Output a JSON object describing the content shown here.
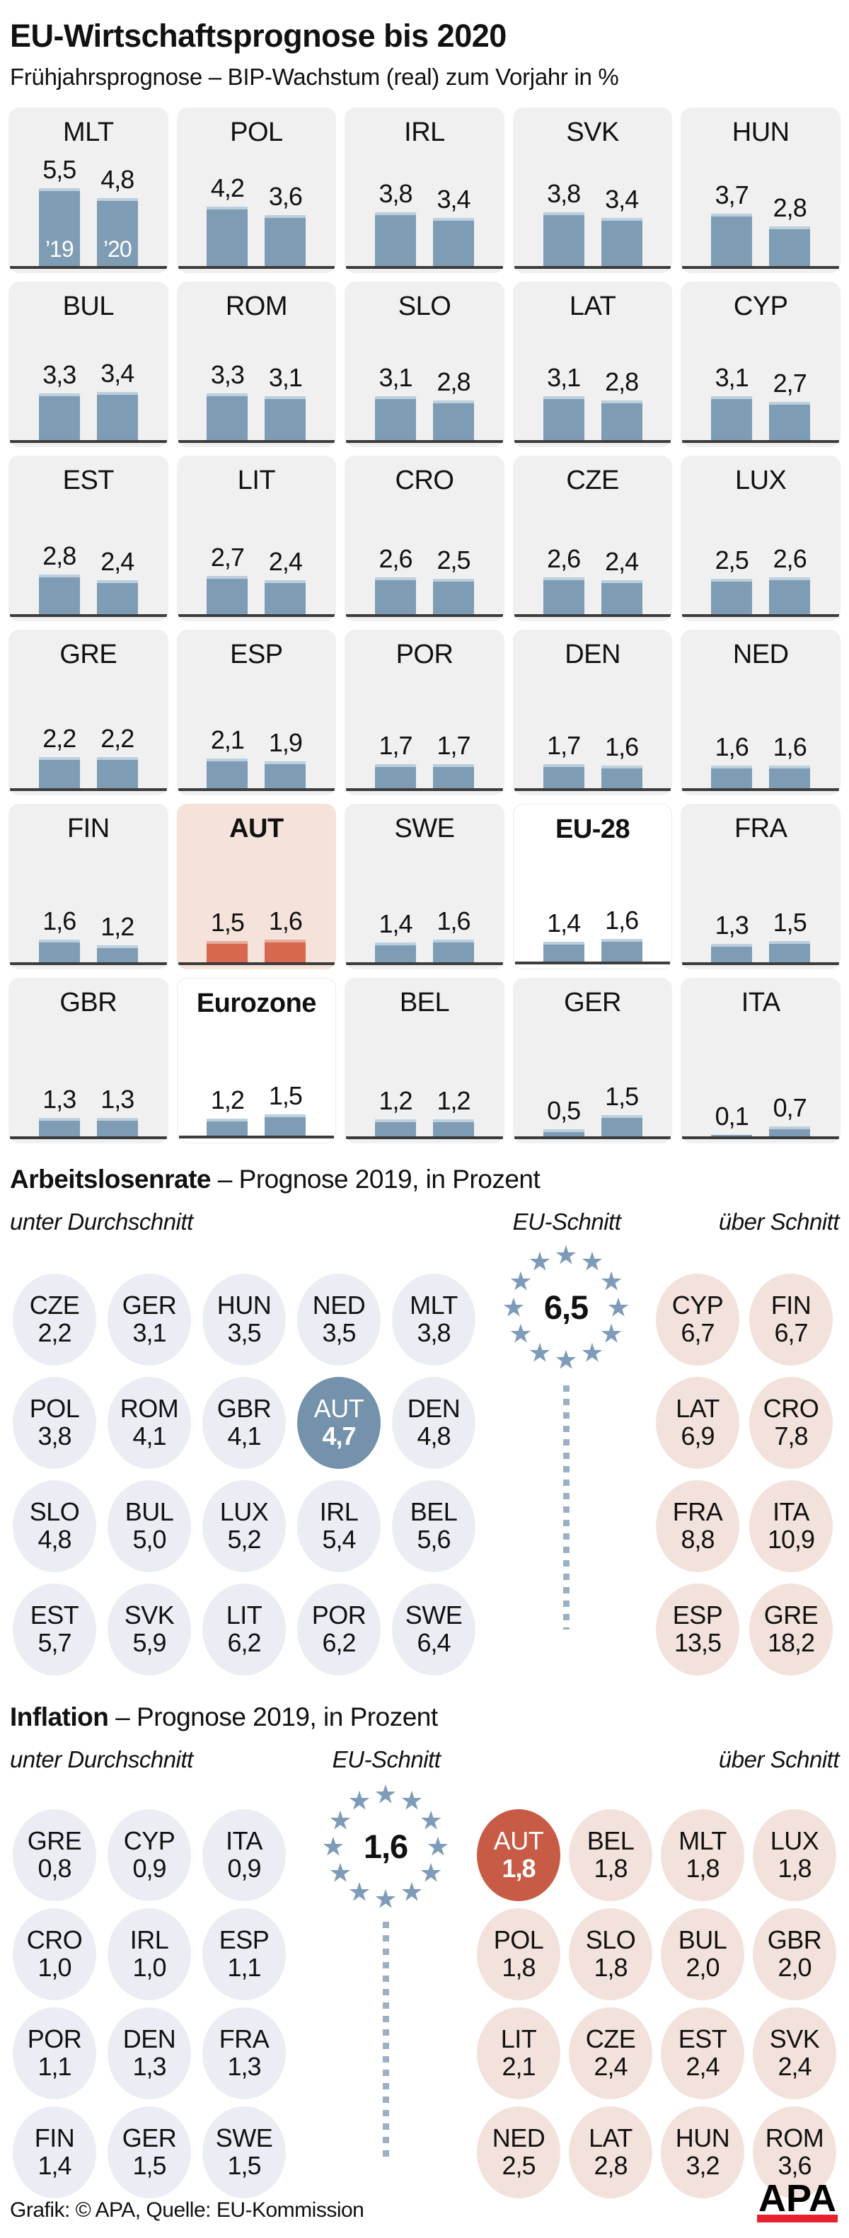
{
  "header": {
    "title": "EU-Wirtschaftsprognose bis 2020",
    "subtitle": "Frühjahrsprognose – BIP-Wachstum (real) zum Vorjahr in %"
  },
  "gdp": {
    "year_labels": [
      "’19",
      "’20"
    ],
    "tiles": [
      {
        "code": "MLT",
        "v2019": 5.5,
        "v2020": 4.8,
        "bg": "gray",
        "bold": false,
        "show_years": true
      },
      {
        "code": "POL",
        "v2019": 4.2,
        "v2020": 3.6,
        "bg": "gray",
        "bold": false,
        "show_years": false
      },
      {
        "code": "IRL",
        "v2019": 3.8,
        "v2020": 3.4,
        "bg": "gray",
        "bold": false,
        "show_years": false
      },
      {
        "code": "SVK",
        "v2019": 3.8,
        "v2020": 3.4,
        "bg": "gray",
        "bold": false,
        "show_years": false
      },
      {
        "code": "HUN",
        "v2019": 3.7,
        "v2020": 2.8,
        "bg": "gray",
        "bold": false,
        "show_years": false
      },
      {
        "code": "BUL",
        "v2019": 3.3,
        "v2020": 3.4,
        "bg": "gray",
        "bold": false,
        "show_years": false
      },
      {
        "code": "ROM",
        "v2019": 3.3,
        "v2020": 3.1,
        "bg": "gray",
        "bold": false,
        "show_years": false
      },
      {
        "code": "SLO",
        "v2019": 3.1,
        "v2020": 2.8,
        "bg": "gray",
        "bold": false,
        "show_years": false
      },
      {
        "code": "LAT",
        "v2019": 3.1,
        "v2020": 2.8,
        "bg": "gray",
        "bold": false,
        "show_years": false
      },
      {
        "code": "CYP",
        "v2019": 3.1,
        "v2020": 2.7,
        "bg": "gray",
        "bold": false,
        "show_years": false
      },
      {
        "code": "EST",
        "v2019": 2.8,
        "v2020": 2.4,
        "bg": "gray",
        "bold": false,
        "show_years": false
      },
      {
        "code": "LIT",
        "v2019": 2.7,
        "v2020": 2.4,
        "bg": "gray",
        "bold": false,
        "show_years": false
      },
      {
        "code": "CRO",
        "v2019": 2.6,
        "v2020": 2.5,
        "bg": "gray",
        "bold": false,
        "show_years": false
      },
      {
        "code": "CZE",
        "v2019": 2.6,
        "v2020": 2.4,
        "bg": "gray",
        "bold": false,
        "show_years": false
      },
      {
        "code": "LUX",
        "v2019": 2.5,
        "v2020": 2.6,
        "bg": "gray",
        "bold": false,
        "show_years": false
      },
      {
        "code": "GRE",
        "v2019": 2.2,
        "v2020": 2.2,
        "bg": "gray",
        "bold": false,
        "show_years": false
      },
      {
        "code": "ESP",
        "v2019": 2.1,
        "v2020": 1.9,
        "bg": "gray",
        "bold": false,
        "show_years": false
      },
      {
        "code": "POR",
        "v2019": 1.7,
        "v2020": 1.7,
        "bg": "gray",
        "bold": false,
        "show_years": false
      },
      {
        "code": "DEN",
        "v2019": 1.7,
        "v2020": 1.6,
        "bg": "gray",
        "bold": false,
        "show_years": false
      },
      {
        "code": "NED",
        "v2019": 1.6,
        "v2020": 1.6,
        "bg": "gray",
        "bold": false,
        "show_years": false
      },
      {
        "code": "FIN",
        "v2019": 1.6,
        "v2020": 1.2,
        "bg": "gray",
        "bold": false,
        "show_years": false
      },
      {
        "code": "AUT",
        "v2019": 1.5,
        "v2020": 1.6,
        "bg": "aut",
        "bold": true,
        "show_years": false
      },
      {
        "code": "SWE",
        "v2019": 1.4,
        "v2020": 1.6,
        "bg": "gray",
        "bold": false,
        "show_years": false
      },
      {
        "code": "EU-28",
        "v2019": 1.4,
        "v2020": 1.6,
        "bg": "white",
        "bold": true,
        "show_years": false
      },
      {
        "code": "FRA",
        "v2019": 1.3,
        "v2020": 1.5,
        "bg": "gray",
        "bold": false,
        "show_years": false
      },
      {
        "code": "GBR",
        "v2019": 1.3,
        "v2020": 1.3,
        "bg": "gray",
        "bold": false,
        "show_years": false
      },
      {
        "code": "Eurozone",
        "v2019": 1.2,
        "v2020": 1.5,
        "bg": "white",
        "bold": true,
        "show_years": false
      },
      {
        "code": "BEL",
        "v2019": 1.2,
        "v2020": 1.2,
        "bg": "gray",
        "bold": false,
        "show_years": false
      },
      {
        "code": "GER",
        "v2019": 0.5,
        "v2020": 1.5,
        "bg": "gray",
        "bold": false,
        "show_years": false
      },
      {
        "code": "ITA",
        "v2019": 0.1,
        "v2020": 0.7,
        "bg": "gray",
        "bold": false,
        "show_years": false
      }
    ]
  },
  "unemployment": {
    "heading_bold": "Arbeitslosenrate",
    "heading_rest": " – Prognose 2019, in Prozent",
    "labels": {
      "below": "unter Durchschnitt",
      "eu": "EU-Schnitt",
      "above": "über Schnitt"
    },
    "eu_value": 6.5,
    "highlight_code": "AUT",
    "below": [
      {
        "code": "CZE",
        "value": 2.2
      },
      {
        "code": "GER",
        "value": 3.1
      },
      {
        "code": "HUN",
        "value": 3.5
      },
      {
        "code": "NED",
        "value": 3.5
      },
      {
        "code": "MLT",
        "value": 3.8
      },
      {
        "code": "POL",
        "value": 3.8
      },
      {
        "code": "ROM",
        "value": 4.1
      },
      {
        "code": "GBR",
        "value": 4.1
      },
      {
        "code": "AUT",
        "value": 4.7
      },
      {
        "code": "DEN",
        "value": 4.8
      },
      {
        "code": "SLO",
        "value": 4.8
      },
      {
        "code": "BUL",
        "value": 5.0
      },
      {
        "code": "LUX",
        "value": 5.2
      },
      {
        "code": "IRL",
        "value": 5.4
      },
      {
        "code": "BEL",
        "value": 5.6
      },
      {
        "code": "EST",
        "value": 5.7
      },
      {
        "code": "SVK",
        "value": 5.9
      },
      {
        "code": "LIT",
        "value": 6.2
      },
      {
        "code": "POR",
        "value": 6.2
      },
      {
        "code": "SWE",
        "value": 6.4
      }
    ],
    "above": [
      {
        "code": "CYP",
        "value": 6.7
      },
      {
        "code": "FIN",
        "value": 6.7
      },
      {
        "code": "LAT",
        "value": 6.9
      },
      {
        "code": "CRO",
        "value": 7.8
      },
      {
        "code": "FRA",
        "value": 8.8
      },
      {
        "code": "ITA",
        "value": 10.9
      },
      {
        "code": "ESP",
        "value": 13.5
      },
      {
        "code": "GRE",
        "value": 18.2
      }
    ]
  },
  "inflation": {
    "heading_bold": "Inflation",
    "heading_rest": " – Prognose 2019, in Prozent",
    "labels": {
      "below": "unter Durchschnitt",
      "eu": "EU-Schnitt",
      "above": "über Schnitt"
    },
    "eu_value": 1.6,
    "highlight_code": "AUT",
    "below": [
      {
        "code": "GRE",
        "value": 0.8
      },
      {
        "code": "CYP",
        "value": 0.9
      },
      {
        "code": "ITA",
        "value": 0.9
      },
      {
        "code": "CRO",
        "value": 1.0
      },
      {
        "code": "IRL",
        "value": 1.0
      },
      {
        "code": "ESP",
        "value": 1.1
      },
      {
        "code": "POR",
        "value": 1.1
      },
      {
        "code": "DEN",
        "value": 1.3
      },
      {
        "code": "FRA",
        "value": 1.3
      },
      {
        "code": "FIN",
        "value": 1.4
      },
      {
        "code": "GER",
        "value": 1.5
      },
      {
        "code": "SWE",
        "value": 1.5
      }
    ],
    "above": [
      {
        "code": "AUT",
        "value": 1.8
      },
      {
        "code": "BEL",
        "value": 1.8
      },
      {
        "code": "MLT",
        "value": 1.8
      },
      {
        "code": "LUX",
        "value": 1.8
      },
      {
        "code": "POL",
        "value": 1.8
      },
      {
        "code": "SLO",
        "value": 1.8
      },
      {
        "code": "BUL",
        "value": 2.0
      },
      {
        "code": "GBR",
        "value": 2.0
      },
      {
        "code": "LIT",
        "value": 2.1
      },
      {
        "code": "CZE",
        "value": 2.4
      },
      {
        "code": "EST",
        "value": 2.4
      },
      {
        "code": "SVK",
        "value": 2.4
      },
      {
        "code": "NED",
        "value": 2.5
      },
      {
        "code": "LAT",
        "value": 2.8
      },
      {
        "code": "HUN",
        "value": 3.2
      },
      {
        "code": "ROM",
        "value": 3.6
      }
    ]
  },
  "footer": {
    "credit": "Grafik: © APA, Quelle: EU-Kommission",
    "logo_text": "APA"
  },
  "colors": {
    "bar_blue": "#7f9cb5",
    "bar_blue_cap": "#bccfdc",
    "bar_orange": "#d8674f",
    "bar_orange_cap": "#e7ab99",
    "tile_bg": "#f0f0f1",
    "aut_tile_bg": "#f5e2da",
    "circle_below": "#eaeef4",
    "circle_above": "#f3e2db",
    "aut_circle_unemployment": "#7492ac",
    "aut_circle_inflation": "#c75b45",
    "star_blue": "#7e9cba",
    "dotted": "#9bb0c2",
    "apa_red": "#e8212e",
    "baseline": "#3c3c3c",
    "text": "#111111"
  },
  "chart_data": [
    {
      "type": "bar",
      "title": "EU-Wirtschaftsprognose bis 2020",
      "subtitle": "Frühjahrsprognose – BIP-Wachstum (real) zum Vorjahr in %",
      "unit": "%",
      "categories": [
        "MLT",
        "POL",
        "IRL",
        "SVK",
        "HUN",
        "BUL",
        "ROM",
        "SLO",
        "LAT",
        "CYP",
        "EST",
        "LIT",
        "CRO",
        "CZE",
        "LUX",
        "GRE",
        "ESP",
        "POR",
        "DEN",
        "NED",
        "FIN",
        "AUT",
        "SWE",
        "EU-28",
        "FRA",
        "GBR",
        "Eurozone",
        "BEL",
        "GER",
        "ITA"
      ],
      "series": [
        {
          "name": "’19",
          "values": [
            5.5,
            4.2,
            3.8,
            3.8,
            3.7,
            3.3,
            3.3,
            3.1,
            3.1,
            3.1,
            2.8,
            2.7,
            2.6,
            2.6,
            2.5,
            2.2,
            2.1,
            1.7,
            1.7,
            1.6,
            1.6,
            1.5,
            1.4,
            1.4,
            1.3,
            1.3,
            1.2,
            1.2,
            0.5,
            0.1
          ]
        },
        {
          "name": "’20",
          "values": [
            4.8,
            3.6,
            3.4,
            3.4,
            2.8,
            3.4,
            3.1,
            2.8,
            2.8,
            2.7,
            2.4,
            2.4,
            2.5,
            2.4,
            2.6,
            2.2,
            1.9,
            1.7,
            1.6,
            1.6,
            1.2,
            1.6,
            1.6,
            1.6,
            1.5,
            1.3,
            1.5,
            1.2,
            1.5,
            0.7
          ]
        }
      ],
      "highlighted": [
        "AUT",
        "EU-28",
        "Eurozone"
      ],
      "layout": "6 rows x 5 tiles, one mini bar pair per country, baseline axis, no grid"
    },
    {
      "type": "table",
      "title": "Arbeitslosenrate – Prognose 2019, in Prozent",
      "eu_average": 6.5,
      "groups": {
        "unter Durchschnitt": [
          [
            "CZE",
            2.2
          ],
          [
            "GER",
            3.1
          ],
          [
            "HUN",
            3.5
          ],
          [
            "NED",
            3.5
          ],
          [
            "MLT",
            3.8
          ],
          [
            "POL",
            3.8
          ],
          [
            "ROM",
            4.1
          ],
          [
            "GBR",
            4.1
          ],
          [
            "AUT",
            4.7
          ],
          [
            "DEN",
            4.8
          ],
          [
            "SLO",
            4.8
          ],
          [
            "BUL",
            5.0
          ],
          [
            "LUX",
            5.2
          ],
          [
            "IRL",
            5.4
          ],
          [
            "BEL",
            5.6
          ],
          [
            "EST",
            5.7
          ],
          [
            "SVK",
            5.9
          ],
          [
            "LIT",
            6.2
          ],
          [
            "POR",
            6.2
          ],
          [
            "SWE",
            6.4
          ]
        ],
        "über Schnitt": [
          [
            "CYP",
            6.7
          ],
          [
            "FIN",
            6.7
          ],
          [
            "LAT",
            6.9
          ],
          [
            "CRO",
            7.8
          ],
          [
            "FRA",
            8.8
          ],
          [
            "ITA",
            10.9
          ],
          [
            "ESP",
            13.5
          ],
          [
            "GRE",
            18.2
          ]
        ]
      },
      "highlighted": [
        "AUT"
      ]
    },
    {
      "type": "table",
      "title": "Inflation – Prognose 2019, in Prozent",
      "eu_average": 1.6,
      "groups": {
        "unter Durchschnitt": [
          [
            "GRE",
            0.8
          ],
          [
            "CYP",
            0.9
          ],
          [
            "ITA",
            0.9
          ],
          [
            "CRO",
            1.0
          ],
          [
            "IRL",
            1.0
          ],
          [
            "ESP",
            1.1
          ],
          [
            "POR",
            1.1
          ],
          [
            "DEN",
            1.3
          ],
          [
            "FRA",
            1.3
          ],
          [
            "FIN",
            1.4
          ],
          [
            "GER",
            1.5
          ],
          [
            "SWE",
            1.5
          ]
        ],
        "über Schnitt": [
          [
            "AUT",
            1.8
          ],
          [
            "BEL",
            1.8
          ],
          [
            "MLT",
            1.8
          ],
          [
            "LUX",
            1.8
          ],
          [
            "POL",
            1.8
          ],
          [
            "SLO",
            1.8
          ],
          [
            "BUL",
            2.0
          ],
          [
            "GBR",
            2.0
          ],
          [
            "LIT",
            2.1
          ],
          [
            "CZE",
            2.4
          ],
          [
            "EST",
            2.4
          ],
          [
            "SVK",
            2.4
          ],
          [
            "NED",
            2.5
          ],
          [
            "LAT",
            2.8
          ],
          [
            "HUN",
            3.2
          ],
          [
            "ROM",
            3.6
          ]
        ]
      },
      "highlighted": [
        "AUT"
      ]
    }
  ]
}
